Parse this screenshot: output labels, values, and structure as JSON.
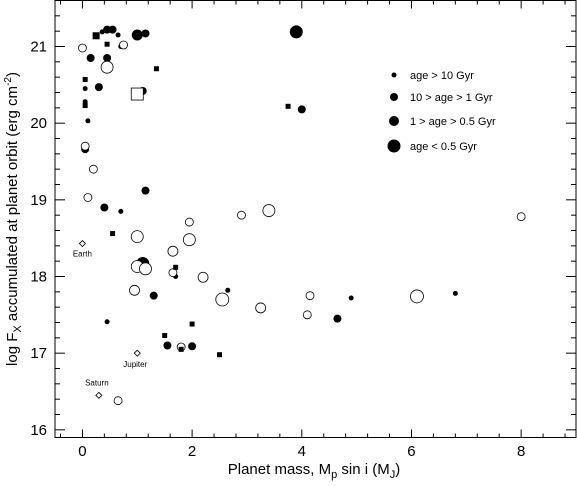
{
  "chart_data": {
    "type": "scatter",
    "xlabel": "Planet mass, M",
    "xlabel_sub": "p",
    "xlabel_tail": " sin i (M",
    "xlabel_sub2": "J",
    "xlabel_close": ")",
    "ylabel_main": "log F",
    "ylabel_sub": "X",
    "ylabel_tail": " accumulated at planet orbit (erg cm",
    "ylabel_sup": "-2",
    "ylabel_close": ")",
    "xlim": [
      -0.5,
      9.0
    ],
    "ylim": [
      15.9,
      21.6
    ],
    "xticks": [
      0,
      2,
      4,
      6,
      8
    ],
    "yticks": [
      16,
      17,
      18,
      19,
      20,
      21
    ],
    "legend_position": "top-right",
    "legend": [
      {
        "label": "age > 10 Gyr",
        "size": "small"
      },
      {
        "label": "10 > age > 1 Gyr",
        "size": "medium"
      },
      {
        "label": "1 > age > 0.5 Gyr",
        "size": "large"
      },
      {
        "label": "age < 0.5 Gyr",
        "size": "xlarge"
      }
    ],
    "series": [
      {
        "marker": "filled-circle",
        "points": [
          {
            "x": 0.36,
            "y": 21.19,
            "s": 2.5
          },
          {
            "x": 0.45,
            "y": 21.22,
            "s": 4
          },
          {
            "x": 0.55,
            "y": 21.22,
            "s": 4
          },
          {
            "x": 0.65,
            "y": 21.15,
            "s": 2.5
          },
          {
            "x": 0.7,
            "y": 21.0,
            "s": 2.5
          },
          {
            "x": 1.0,
            "y": 21.15,
            "s": 5.5
          },
          {
            "x": 1.15,
            "y": 21.17,
            "s": 4
          },
          {
            "x": 3.9,
            "y": 21.19,
            "s": 6.5
          },
          {
            "x": 0.15,
            "y": 20.85,
            "s": 4
          },
          {
            "x": 0.45,
            "y": 20.85,
            "s": 4
          },
          {
            "x": 0.05,
            "y": 20.45,
            "s": 2.5
          },
          {
            "x": 0.3,
            "y": 20.47,
            "s": 4
          },
          {
            "x": 1.1,
            "y": 20.42,
            "s": 4
          },
          {
            "x": 0.05,
            "y": 20.28,
            "s": 2.5
          },
          {
            "x": 4.0,
            "y": 20.18,
            "s": 4
          },
          {
            "x": 0.1,
            "y": 20.03,
            "s": 2.5
          },
          {
            "x": 0.05,
            "y": 19.66,
            "s": 4
          },
          {
            "x": 1.15,
            "y": 19.12,
            "s": 4
          },
          {
            "x": 0.4,
            "y": 18.9,
            "s": 4
          },
          {
            "x": 0.7,
            "y": 18.85,
            "s": 2.5
          },
          {
            "x": 1.95,
            "y": 18.43,
            "s": 2.5
          },
          {
            "x": 1.1,
            "y": 18.17,
            "s": 6.5
          },
          {
            "x": 1.7,
            "y": 18.0,
            "s": 2.5
          },
          {
            "x": 2.65,
            "y": 17.82,
            "s": 2.5
          },
          {
            "x": 1.3,
            "y": 17.75,
            "s": 4
          },
          {
            "x": 4.9,
            "y": 17.72,
            "s": 2.5
          },
          {
            "x": 6.8,
            "y": 17.78,
            "s": 2.5
          },
          {
            "x": 4.65,
            "y": 17.45,
            "s": 4
          },
          {
            "x": 0.45,
            "y": 17.41,
            "s": 2.5
          },
          {
            "x": 1.55,
            "y": 17.1,
            "s": 4
          },
          {
            "x": 2.0,
            "y": 17.09,
            "s": 4
          }
        ]
      },
      {
        "marker": "open-circle",
        "points": [
          {
            "x": 0.0,
            "y": 20.98,
            "s": 4
          },
          {
            "x": 0.75,
            "y": 21.02,
            "s": 4
          },
          {
            "x": 0.45,
            "y": 20.73,
            "s": 6
          },
          {
            "x": 0.05,
            "y": 19.7,
            "s": 4
          },
          {
            "x": 0.2,
            "y": 19.4,
            "s": 4
          },
          {
            "x": 0.1,
            "y": 19.03,
            "s": 4
          },
          {
            "x": 2.9,
            "y": 18.8,
            "s": 4
          },
          {
            "x": 3.4,
            "y": 18.86,
            "s": 6
          },
          {
            "x": 8.0,
            "y": 18.78,
            "s": 4
          },
          {
            "x": 1.95,
            "y": 18.71,
            "s": 4
          },
          {
            "x": 1.0,
            "y": 18.52,
            "s": 6
          },
          {
            "x": 1.95,
            "y": 18.48,
            "s": 6
          },
          {
            "x": 1.65,
            "y": 18.33,
            "s": 5
          },
          {
            "x": 1.0,
            "y": 18.13,
            "s": 6
          },
          {
            "x": 1.15,
            "y": 18.1,
            "s": 6
          },
          {
            "x": 1.65,
            "y": 18.05,
            "s": 4
          },
          {
            "x": 2.2,
            "y": 17.99,
            "s": 5
          },
          {
            "x": 0.95,
            "y": 17.82,
            "s": 5
          },
          {
            "x": 2.55,
            "y": 17.7,
            "s": 6.5
          },
          {
            "x": 4.15,
            "y": 17.75,
            "s": 4
          },
          {
            "x": 6.1,
            "y": 17.74,
            "s": 6.5
          },
          {
            "x": 3.25,
            "y": 17.59,
            "s": 5
          },
          {
            "x": 4.1,
            "y": 17.5,
            "s": 4
          },
          {
            "x": 1.8,
            "y": 17.08,
            "s": 4
          },
          {
            "x": 0.65,
            "y": 16.38,
            "s": 4
          }
        ]
      },
      {
        "marker": "filled-square",
        "points": [
          {
            "x": 0.25,
            "y": 21.14,
            "s": 3.5
          },
          {
            "x": 0.45,
            "y": 21.03,
            "s": 2.5
          },
          {
            "x": 0.05,
            "y": 20.57,
            "s": 2.5
          },
          {
            "x": 0.05,
            "y": 20.23,
            "s": 2.5
          },
          {
            "x": 1.35,
            "y": 20.71,
            "s": 2.5
          },
          {
            "x": 3.75,
            "y": 20.22,
            "s": 2.5
          },
          {
            "x": 0.55,
            "y": 18.56,
            "s": 2.5
          },
          {
            "x": 1.7,
            "y": 18.12,
            "s": 2.5
          },
          {
            "x": 2.0,
            "y": 17.38,
            "s": 2.5
          },
          {
            "x": 1.5,
            "y": 17.23,
            "s": 2.5
          },
          {
            "x": 1.8,
            "y": 17.05,
            "s": 2.5
          },
          {
            "x": 2.5,
            "y": 16.98,
            "s": 2.5
          }
        ]
      },
      {
        "marker": "open-square",
        "points": [
          {
            "x": 1.0,
            "y": 20.38,
            "s": 6
          }
        ]
      },
      {
        "marker": "open-diamond",
        "points": [
          {
            "x": 0.0,
            "y": 18.43,
            "s": 3
          },
          {
            "x": 1.0,
            "y": 17.0,
            "s": 3
          },
          {
            "x": 0.3,
            "y": 16.45,
            "s": 3
          }
        ]
      }
    ],
    "annotations": [
      {
        "text": "Earth",
        "x": 0.0,
        "y": 18.43,
        "dx": 0,
        "dy": 13
      },
      {
        "text": "Jupiter",
        "x": 1.0,
        "y": 17.0,
        "dx": -2,
        "dy": 14
      },
      {
        "text": "Saturn",
        "x": 0.3,
        "y": 16.45,
        "dx": -2,
        "dy": -10
      }
    ]
  }
}
